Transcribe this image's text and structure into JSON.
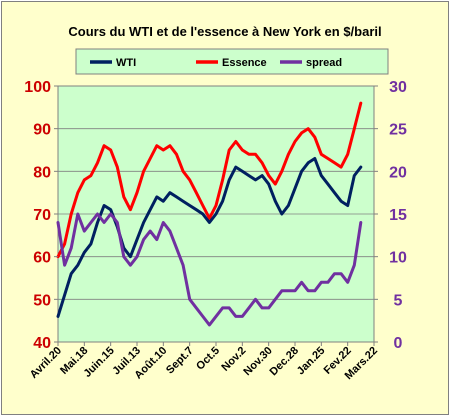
{
  "chart_data": {
    "type": "line",
    "title": "Cours du WTI et de l'essence à New York en $/baril",
    "xlabel": "",
    "ylabel": "",
    "x_ticks": [
      "Avril.20",
      "Mai.18",
      "Juin.15",
      "Juil.13",
      "Août.10",
      "Sept.7",
      "Oct.5",
      "Nov.2",
      "Nov.30",
      "Dec.28",
      "Jan.25",
      "Fev.22",
      "Mars.22"
    ],
    "ylim_left": [
      40,
      100
    ],
    "yticks_left": [
      40,
      50,
      60,
      70,
      80,
      90,
      100
    ],
    "ylim_right": [
      0,
      30
    ],
    "yticks_right": [
      0,
      5,
      10,
      15,
      20,
      25,
      30
    ],
    "grid": true,
    "legend_position": "top",
    "background_color": "#ffffcc",
    "plot_background_color": "#ccffcc",
    "series": [
      {
        "name": "WTI",
        "axis": "left",
        "color": "#002060",
        "x": [
          0,
          0.25,
          0.5,
          0.75,
          1,
          1.25,
          1.5,
          1.75,
          2,
          2.25,
          2.5,
          2.75,
          3,
          3.25,
          3.5,
          3.75,
          4,
          4.25,
          4.5,
          4.75,
          5,
          5.25,
          5.5,
          5.75,
          6,
          6.25,
          6.5,
          6.75,
          7,
          7.25,
          7.5,
          7.75,
          8,
          8.25,
          8.5,
          8.75,
          9,
          9.25,
          9.5,
          9.75,
          10,
          10.25,
          10.5,
          10.75,
          11,
          11.25,
          11.5
        ],
        "values": [
          46,
          51,
          56,
          58,
          61,
          63,
          68,
          72,
          71,
          67,
          62,
          60,
          64,
          68,
          71,
          74,
          73,
          75,
          74,
          73,
          72,
          71,
          70,
          68,
          70,
          73,
          78,
          81,
          80,
          79,
          78,
          79,
          77,
          73,
          70,
          72,
          76,
          80,
          82,
          83,
          79,
          77,
          75,
          73,
          72,
          79,
          81
        ]
      },
      {
        "name": "Essence",
        "axis": "left",
        "color": "#ff0000",
        "x": [
          0,
          0.25,
          0.5,
          0.75,
          1,
          1.25,
          1.5,
          1.75,
          2,
          2.25,
          2.5,
          2.75,
          3,
          3.25,
          3.5,
          3.75,
          4,
          4.25,
          4.5,
          4.75,
          5,
          5.25,
          5.5,
          5.75,
          6,
          6.25,
          6.5,
          6.75,
          7,
          7.25,
          7.5,
          7.75,
          8,
          8.25,
          8.5,
          8.75,
          9,
          9.25,
          9.5,
          9.75,
          10,
          10.25,
          10.5,
          10.75,
          11,
          11.25,
          11.5
        ],
        "values": [
          60,
          63,
          70,
          75,
          78,
          79,
          82,
          86,
          85,
          81,
          74,
          71,
          75,
          80,
          83,
          86,
          85,
          86,
          84,
          80,
          78,
          75,
          72,
          69,
          72,
          78,
          85,
          87,
          85,
          84,
          84,
          82,
          79,
          77,
          80,
          84,
          87,
          89,
          90,
          88,
          84,
          83,
          82,
          81,
          84,
          90,
          96
        ]
      },
      {
        "name": "spread",
        "axis": "right",
        "color": "#7030a0",
        "x": [
          0,
          0.25,
          0.5,
          0.75,
          1,
          1.25,
          1.5,
          1.75,
          2,
          2.25,
          2.5,
          2.75,
          3,
          3.25,
          3.5,
          3.75,
          4,
          4.25,
          4.5,
          4.75,
          5,
          5.25,
          5.5,
          5.75,
          6,
          6.25,
          6.5,
          6.75,
          7,
          7.25,
          7.5,
          7.75,
          8,
          8.25,
          8.5,
          8.75,
          9,
          9.25,
          9.5,
          9.75,
          10,
          10.25,
          10.5,
          10.75,
          11,
          11.25,
          11.5
        ],
        "values": [
          14,
          9,
          11,
          15,
          13,
          14,
          15,
          14,
          15,
          14,
          10,
          9,
          10,
          12,
          13,
          12,
          14,
          13,
          11,
          9,
          5,
          4,
          3,
          2,
          3,
          4,
          4,
          3,
          3,
          4,
          5,
          4,
          4,
          5,
          6,
          6,
          6,
          7,
          6,
          6,
          7,
          7,
          8,
          8,
          7,
          9,
          14
        ]
      }
    ]
  }
}
